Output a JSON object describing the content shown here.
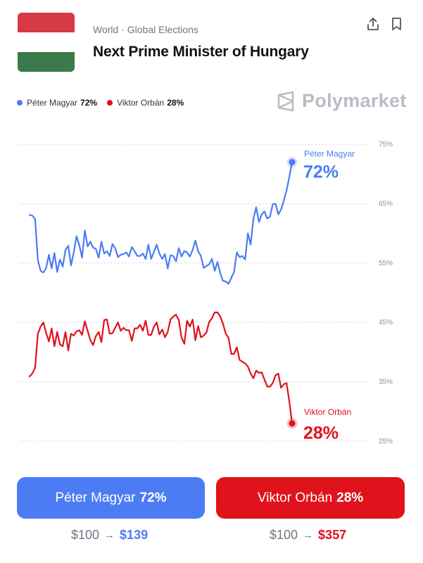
{
  "header": {
    "breadcrumb": "World · Global Elections",
    "title": "Next Prime Minister of Hungary",
    "flag_colors": [
      "#d63a44",
      "#ffffff",
      "#3b7a4a"
    ]
  },
  "legend": {
    "items": [
      {
        "name": "Péter Magyar",
        "pct": "72%",
        "color": "#4c7cf4"
      },
      {
        "name": "Viktor Orbán",
        "pct": "28%",
        "color": "#e0121b"
      }
    ]
  },
  "brand": {
    "name": "Polymarket",
    "icon": "polymarket-logo-icon"
  },
  "actions": {
    "share_icon": "share-icon",
    "bookmark_icon": "bookmark-icon"
  },
  "chart_data": {
    "type": "line",
    "y_ticks": [
      "75%",
      "65%",
      "55%",
      "45%",
      "35%",
      "25%"
    ],
    "ylim": [
      25,
      75
    ],
    "grid": true,
    "series": [
      {
        "name": "Péter Magyar",
        "end_label": "72%",
        "color": "#4c7cf4",
        "values": [
          63.1,
          63.0,
          62.4,
          55.5,
          53.7,
          53.4,
          54.2,
          56.4,
          54.1,
          56.7,
          53.5,
          55.6,
          54.4,
          57.2,
          57.9,
          54.6,
          56.8,
          59.5,
          58.0,
          55.9,
          60.5,
          57.8,
          58.6,
          57.6,
          57.4,
          55.9,
          58.6,
          56.6,
          57.0,
          56.2,
          58.2,
          57.5,
          56.0,
          56.4,
          56.5,
          56.8,
          56.1,
          57.7,
          57.0,
          56.2,
          56.2,
          56.6,
          55.7,
          58.1,
          55.7,
          56.9,
          58.1,
          56.6,
          55.7,
          56.5,
          54.1,
          56.3,
          56.2,
          55.3,
          57.5,
          56.1,
          57.0,
          56.8,
          56.1,
          57.2,
          58.8,
          57.0,
          56.2,
          54.2,
          54.5,
          54.8,
          55.7,
          53.7,
          55.2,
          53.3,
          52.0,
          51.9,
          51.5,
          52.5,
          53.5,
          56.8,
          56.0,
          56.2,
          55.6,
          60.0,
          58.1,
          62.4,
          64.4,
          61.9,
          63.2,
          63.7,
          62.5,
          62.8,
          64.9,
          65.0,
          63.2,
          64.0,
          65.5,
          67.2,
          69.5,
          72.0
        ]
      },
      {
        "name": "Viktor Orbán",
        "end_label": "28%",
        "color": "#e0121b",
        "values": [
          35.9,
          36.4,
          37.4,
          43.1,
          44.3,
          45.0,
          43.2,
          41.8,
          44.0,
          41.0,
          43.4,
          41.3,
          41.0,
          43.4,
          40.3,
          43.1,
          42.8,
          43.5,
          43.7,
          42.9,
          45.2,
          43.6,
          42.0,
          41.2,
          42.7,
          43.4,
          41.7,
          45.4,
          45.5,
          43.1,
          43.2,
          44.1,
          45.0,
          43.6,
          44.1,
          43.7,
          43.7,
          41.9,
          44.0,
          44.0,
          44.6,
          43.6,
          45.3,
          42.9,
          42.9,
          44.3,
          45.0,
          43.0,
          43.8,
          42.5,
          43.4,
          45.5,
          46.0,
          46.3,
          45.4,
          42.5,
          41.4,
          45.3,
          44.3,
          45.5,
          42.0,
          44.4,
          42.5,
          42.8,
          43.3,
          45.1,
          45.7,
          46.7,
          46.7,
          46.0,
          44.8,
          43.1,
          42.4,
          39.7,
          39.7,
          40.8,
          38.7,
          38.4,
          38.1,
          37.6,
          36.4,
          35.6,
          36.9,
          36.5,
          36.6,
          35.4,
          34.2,
          34.2,
          34.8,
          36.1,
          36.4,
          34.0,
          34.6,
          34.8,
          31.7,
          28.0
        ]
      }
    ]
  },
  "buttons": {
    "blue": {
      "name": "Péter Magyar",
      "pct": "72%"
    },
    "red": {
      "name": "Viktor Orbán",
      "pct": "28%"
    }
  },
  "payouts": {
    "blue": {
      "stake": "$100",
      "arrow": "→",
      "return": "$139"
    },
    "red": {
      "stake": "$100",
      "arrow": "→",
      "return": "$357"
    }
  }
}
